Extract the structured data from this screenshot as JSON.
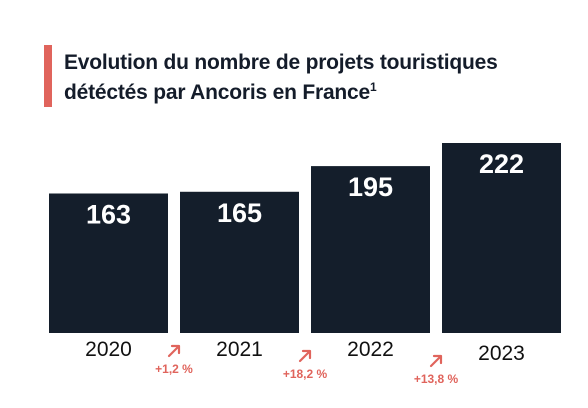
{
  "chart_data": {
    "type": "bar",
    "title": "Evolution du nombre de projets touristiques détéctés par Ancoris en France",
    "title_footnote": "1",
    "categories": [
      "2020",
      "2021",
      "2022",
      "2023"
    ],
    "values": [
      163,
      165,
      195,
      222
    ],
    "growth_labels": [
      "+1,2 %",
      "+18,2 %",
      "+13,8 %"
    ],
    "ylim": [
      0,
      230
    ],
    "grid": false,
    "xlabel": "",
    "ylabel": "",
    "colors": {
      "bar": "#141e2b",
      "accent": "#e0645c",
      "value_text": "#ffffff"
    }
  }
}
